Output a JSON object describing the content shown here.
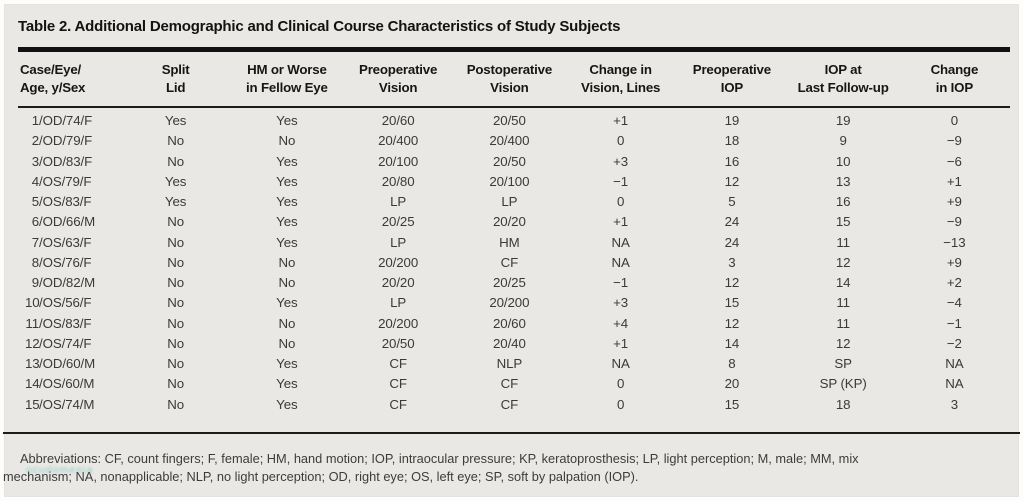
{
  "title": "Table 2. Additional Demographic and Clinical Course Characteristics of Study Subjects",
  "table": {
    "columns": [
      {
        "line1": "Case/Eye/",
        "line2": "Age, y/Sex"
      },
      {
        "line1": "Split",
        "line2": "Lid"
      },
      {
        "line1": "HM or Worse",
        "line2": "in Fellow Eye"
      },
      {
        "line1": "Preoperative",
        "line2": "Vision"
      },
      {
        "line1": "Postoperative",
        "line2": "Vision"
      },
      {
        "line1": "Change in",
        "line2": "Vision, Lines"
      },
      {
        "line1": "Preoperative",
        "line2": "IOP"
      },
      {
        "line1": "IOP at",
        "line2": "Last Follow-up"
      },
      {
        "line1": "Change",
        "line2": "in IOP"
      }
    ],
    "rows": [
      [
        "1/OD/74/F",
        "Yes",
        "Yes",
        "20/60",
        "20/50",
        "+1",
        "19",
        "19",
        "0"
      ],
      [
        "2/OD/79/F",
        "No",
        "No",
        "20/400",
        "20/400",
        "0",
        "18",
        "9",
        "−9"
      ],
      [
        "3/OD/83/F",
        "No",
        "Yes",
        "20/100",
        "20/50",
        "+3",
        "16",
        "10",
        "−6"
      ],
      [
        "4/OS/79/F",
        "Yes",
        "Yes",
        "20/80",
        "20/100",
        "−1",
        "12",
        "13",
        "+1"
      ],
      [
        "5/OS/83/F",
        "Yes",
        "Yes",
        "LP",
        "LP",
        "0",
        "5",
        "16",
        "+9"
      ],
      [
        "6/OD/66/M",
        "No",
        "Yes",
        "20/25",
        "20/20",
        "+1",
        "24",
        "15",
        "−9"
      ],
      [
        "7/OS/63/F",
        "No",
        "Yes",
        "LP",
        "HM",
        "NA",
        "24",
        "11",
        "−13"
      ],
      [
        "8/OS/76/F",
        "No",
        "No",
        "20/200",
        "CF",
        "NA",
        "3",
        "12",
        "+9"
      ],
      [
        "9/OD/82/M",
        "No",
        "No",
        "20/20",
        "20/25",
        "−1",
        "12",
        "14",
        "+2"
      ],
      [
        "10/OS/56/F",
        "No",
        "Yes",
        "LP",
        "20/200",
        "+3",
        "15",
        "11",
        "−4"
      ],
      [
        "11/OS/83/F",
        "No",
        "No",
        "20/200",
        "20/60",
        "+4",
        "12",
        "11",
        "−1"
      ],
      [
        "12/OS/74/F",
        "No",
        "No",
        "20/50",
        "20/40",
        "+1",
        "14",
        "12",
        "−2"
      ],
      [
        "13/OD/60/M",
        "No",
        "Yes",
        "CF",
        "NLP",
        "NA",
        "8",
        "SP",
        "NA"
      ],
      [
        "14/OS/60/M",
        "No",
        "Yes",
        "CF",
        "CF",
        "0",
        "20",
        "SP (KP)",
        "NA"
      ],
      [
        "15/OS/74/M",
        "No",
        "Yes",
        "CF",
        "CF",
        "0",
        "15",
        "18",
        "3"
      ]
    ]
  },
  "footnote": {
    "line1": "Abbreviations: CF, count fingers; F, female; HM, hand motion; IOP, intraocular pressure; KP, keratoprosthesis; LP, light perception; M, male; MM, mix",
    "line2": "mechanism; NA, nonapplicable; NLP, no light perception; OD, right eye; OS, left eye; SP, soft by palpation (IOP)."
  },
  "watermark": {
    "text": "ocudomenia"
  },
  "colors": {
    "panel_bg": "#e9e8e5",
    "rule": "#1c1c1c",
    "header_text": "#161616",
    "body_text": "#3a3a3a",
    "watermark": "#49b2a8"
  }
}
